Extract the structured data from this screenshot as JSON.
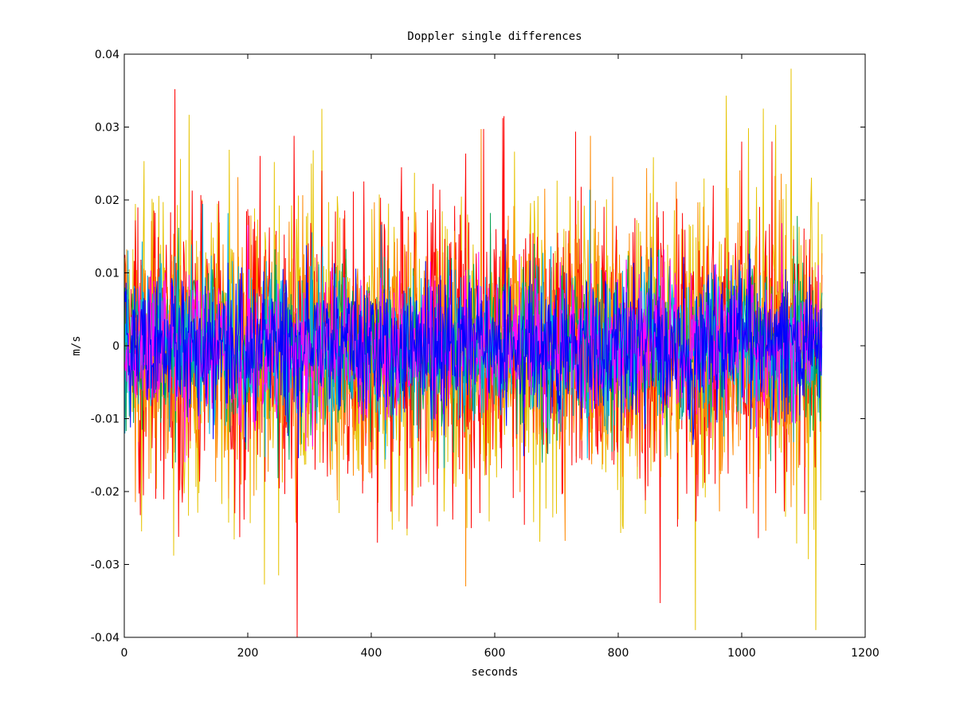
{
  "chart_data": {
    "type": "line",
    "title": "Doppler single differences",
    "xlabel": "seconds",
    "ylabel": "m/s",
    "xlim": [
      0,
      1200
    ],
    "ylim": [
      -0.04,
      0.04
    ],
    "x_ticks": [
      0,
      200,
      400,
      600,
      800,
      1000,
      1200
    ],
    "x_tick_labels": [
      "0",
      "200",
      "400",
      "600",
      "800",
      "1000",
      "1200"
    ],
    "y_ticks": [
      0.04,
      0.03,
      0.02,
      0.01,
      0,
      -0.01,
      -0.02,
      -0.03,
      -0.04
    ],
    "y_tick_labels": [
      "0.04",
      "0.03",
      "0.02",
      "0.01",
      "0",
      "-0.01",
      "-0.02",
      "-0.03",
      "-0.04"
    ],
    "grid": false,
    "legend": "none",
    "sampling": {
      "x_start": 0,
      "x_end": 1130,
      "step": 1,
      "seed": 20240517
    },
    "series": [
      {
        "color": "#e6c300",
        "std": 0.0105,
        "extremes": [
          [
            80,
            -0.0288
          ],
          [
            320,
            0.0325
          ],
          [
            925,
            -0.039
          ],
          [
            975,
            0.0343
          ],
          [
            1080,
            0.038
          ],
          [
            1120,
            -0.039
          ],
          [
            250,
            -0.0315
          ]
        ]
      },
      {
        "color": "#ff0000",
        "std": 0.01,
        "extremes": [
          [
            82,
            0.0352
          ],
          [
            280,
            -0.04
          ],
          [
            275,
            0.0288
          ],
          [
            615,
            0.0315
          ],
          [
            868,
            -0.0353
          ],
          [
            1000,
            0.028
          ]
        ]
      },
      {
        "color": "#ff8800",
        "std": 0.0085,
        "extremes": [
          [
            755,
            0.0288
          ],
          [
            553,
            -0.033
          ]
        ]
      },
      {
        "color": "#00a050",
        "std": 0.0055,
        "extremes": []
      },
      {
        "color": "#00b0e0",
        "std": 0.0055,
        "extremes": []
      },
      {
        "color": "#ff00ff",
        "std": 0.005,
        "extremes": []
      },
      {
        "color": "#0000ff",
        "std": 0.0048,
        "extremes": [
          [
            295,
            0.0138
          ],
          [
            10,
            -0.0112
          ]
        ]
      }
    ]
  }
}
